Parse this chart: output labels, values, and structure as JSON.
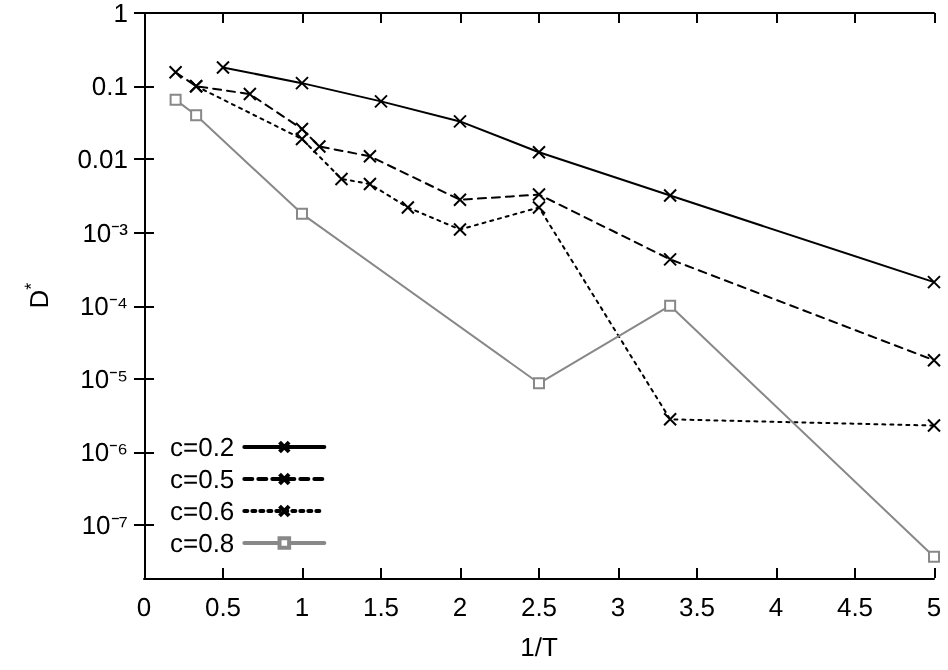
{
  "chart_data": {
    "type": "line",
    "xlabel": "1/T",
    "ylabel": "D$^{*}$",
    "xlim": [
      0,
      5
    ],
    "xticks": [
      0,
      0.5,
      1,
      1.5,
      2,
      2.5,
      3,
      3.5,
      4,
      4.5,
      5
    ],
    "ylim": [
      1.9e-08,
      1
    ],
    "log": "y",
    "yticks": [
      1,
      0.1,
      0.01,
      {
        "value": 0.001,
        "label": "10⁻³"
      },
      {
        "value": 0.0001,
        "label": "10⁻⁴"
      },
      {
        "value": 1e-05,
        "label": "10⁻⁵"
      },
      {
        "value": 1e-06,
        "label": "10⁻⁶"
      },
      {
        "value": 1e-07,
        "label": "10⁻⁷"
      }
    ],
    "grid": false,
    "legend": "bottom left",
    "series": [
      {
        "name": "c=0.2",
        "color": "#000000",
        "marker": "cross",
        "line_style": "solid",
        "x": [
          0.5,
          1,
          1.5,
          2,
          2.5,
          3.33,
          5
        ],
        "values": [
          0.18,
          0.11,
          0.062,
          0.033,
          0.0125,
          0.0032,
          0.00021
        ]
      },
      {
        "name": "c=0.5",
        "color": "#000000",
        "marker": "cross",
        "line_style": "dashed",
        "x": [
          0.2,
          0.33,
          0.67,
          1,
          1.11,
          1.43,
          2,
          2.5,
          3.33,
          5
        ],
        "values": [
          0.155,
          0.1,
          0.078,
          0.026,
          0.015,
          0.011,
          0.0028,
          0.0033,
          0.00043,
          1.8e-05
        ]
      },
      {
        "name": "c=0.6",
        "color": "#000000",
        "marker": "cross",
        "line_style": "dotted",
        "x": [
          0.33,
          1,
          1.25,
          1.43,
          1.67,
          2,
          2.5,
          3.33,
          5
        ],
        "values": [
          0.1,
          0.019,
          0.0054,
          0.0046,
          0.0022,
          0.0011,
          0.0022,
          2.8e-06,
          2.3e-06
        ]
      },
      {
        "name": "c=0.8",
        "color": "#888888",
        "marker": "square",
        "line_style": "solid",
        "x": [
          0.2,
          0.33,
          1,
          2.5,
          3.33,
          5
        ],
        "values": [
          0.065,
          0.04,
          0.0018,
          8.7e-06,
          0.0001,
          3.7e-08
        ]
      }
    ]
  }
}
